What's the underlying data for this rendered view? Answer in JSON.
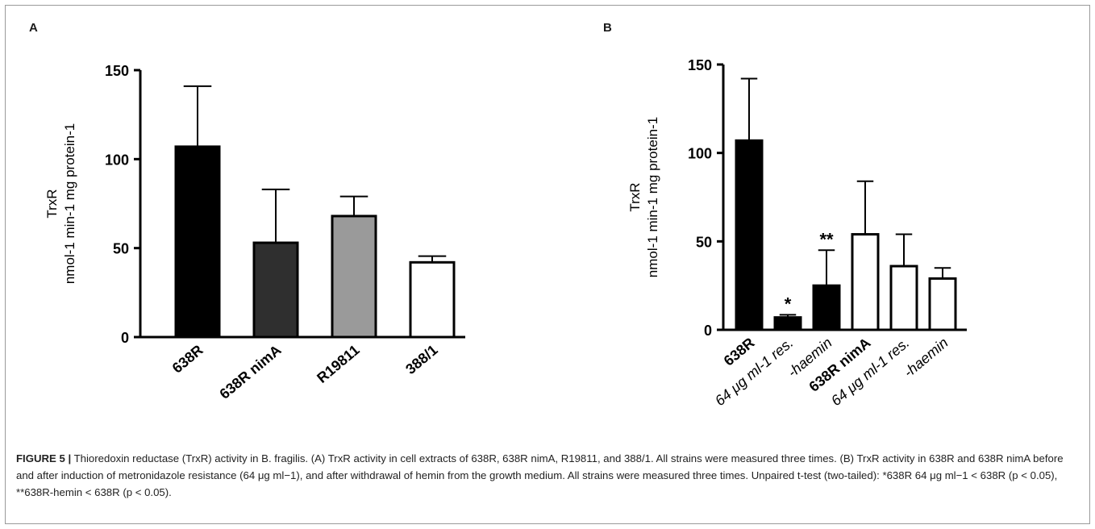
{
  "panels": [
    {
      "id": "A",
      "letter": "A"
    },
    {
      "id": "B",
      "letter": "B"
    }
  ],
  "chart_data": [
    {
      "type": "bar",
      "panel": "A",
      "ylabel_line1": "TrxR",
      "ylabel_line2": "nmol-1 min-1 mg protein-1",
      "ylim": [
        0,
        150
      ],
      "yticks": [
        0,
        50,
        100,
        150
      ],
      "categories": [
        "638R",
        "638R nimA",
        "R19811",
        "388/1"
      ],
      "category_styles": [
        "bold",
        "bold",
        "bold",
        "bold"
      ],
      "values": [
        107,
        53,
        68,
        42
      ],
      "errors": [
        34,
        30,
        11,
        3.5
      ],
      "fills": [
        "#000000",
        "#2f2f2f",
        "#9a9a9a",
        "#ffffff"
      ],
      "annotations": [
        "",
        "",
        "",
        ""
      ]
    },
    {
      "type": "bar",
      "panel": "B",
      "ylabel_line1": "TrxR",
      "ylabel_line2": "nmol-1 min-1 mg protein-1",
      "ylim": [
        0,
        150
      ],
      "yticks": [
        0,
        50,
        100,
        150
      ],
      "categories": [
        "638R",
        "64 μg ml-1 res.",
        "-haemin",
        "638R nimA",
        "64 μg ml-1 res.",
        "-haemin"
      ],
      "category_styles": [
        "bold",
        "italic",
        "italic",
        "bold",
        "italic",
        "italic"
      ],
      "values": [
        107,
        7,
        25,
        54,
        36,
        29
      ],
      "errors": [
        35,
        1.5,
        20,
        30,
        18,
        6
      ],
      "fills": [
        "#000000",
        "#000000",
        "#000000",
        "#ffffff",
        "#ffffff",
        "#ffffff"
      ],
      "annotations": [
        "",
        "*",
        "**",
        "",
        "",
        ""
      ]
    }
  ],
  "caption": {
    "lead": "FIGURE 5 |",
    "text": " Thioredoxin reductase (TrxR) activity in B. fragilis. (A) TrxR activity in cell extracts of 638R, 638R nimA, R19811, and 388/1. All strains were measured three times. (B) TrxR activity in 638R and 638R nimA before and after induction of metronidazole resistance (64 μg ml−1), and after withdrawal of hemin from the growth medium. All strains were measured three times. Unpaired t-test (two-tailed): *638R 64 μg ml−1 < 638R (p < 0.05), **638R-hemin < 638R (p < 0.05)."
  }
}
